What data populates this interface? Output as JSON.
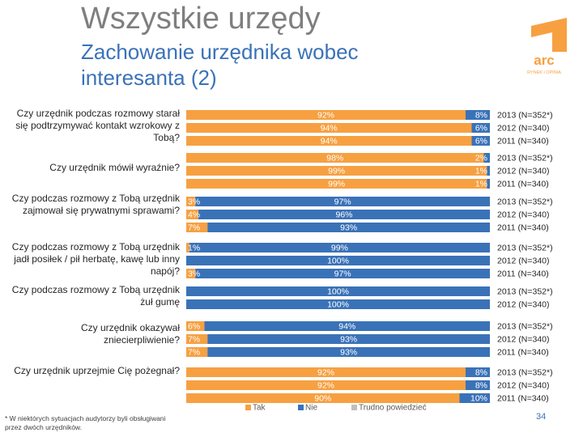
{
  "header": {
    "title": "Wszystkie urzędy",
    "subtitle": "Zachowanie urzędnika wobec interesanta (2)"
  },
  "logo": {
    "text": "arc",
    "tagline": "RYNEK i OPINIA"
  },
  "footnote": "* W niektórych sytuacjach audytorzy byli obsługiwani przez dwóch urzędników.",
  "page_number": "34",
  "colors": {
    "tak": "#f7a041",
    "nie": "#3a72b8",
    "trudno": "#bfbfbf",
    "title": "#7f7f7f",
    "subtitle": "#3a72b8"
  },
  "chart_data": {
    "type": "bar",
    "orientation": "horizontal",
    "stacked": true,
    "xlim": [
      0,
      100
    ],
    "unit": "%",
    "legend": [
      "Tak",
      "Nie",
      "Trudno powiedzieć"
    ],
    "legend_position": "bottom",
    "questions": [
      {
        "label": "Czy urzędnik podczas rozmowy starał się podtrzymywać kontakt wzrokowy z Tobą?",
        "rows": [
          {
            "year": "2013 (N=352*)",
            "tak": 92,
            "nie": 8,
            "trudno": 0,
            "labels": [
              "92%",
              "8%"
            ]
          },
          {
            "year": "2012 (N=340)",
            "tak": 94,
            "nie": 6,
            "trudno": 0,
            "labels": [
              "94%",
              "6%"
            ]
          },
          {
            "year": "2011 (N=340)",
            "tak": 94,
            "nie": 6,
            "trudno": 0,
            "labels": [
              "94%",
              "6%"
            ]
          }
        ]
      },
      {
        "label": "Czy urzędnik mówił wyraźnie?",
        "rows": [
          {
            "year": "2013 (N=352*)",
            "tak": 98,
            "nie": 2,
            "trudno": 0,
            "labels": [
              "98%",
              "2%"
            ]
          },
          {
            "year": "2012 (N=340)",
            "tak": 99,
            "nie": 1,
            "trudno": 0,
            "labels": [
              "99%",
              "1%"
            ]
          },
          {
            "year": "2011 (N=340)",
            "tak": 99,
            "nie": 1,
            "trudno": 0,
            "labels": [
              "99%",
              "1%"
            ]
          }
        ]
      },
      {
        "label": "Czy podczas rozmowy z Tobą urzędnik zajmował się prywatnymi sprawami?",
        "rows": [
          {
            "year": "2013 (N=352*)",
            "tak": 3,
            "nie": 97,
            "trudno": 0,
            "labels": [
              "3%",
              "97%"
            ]
          },
          {
            "year": "2012 (N=340)",
            "tak": 4,
            "nie": 96,
            "trudno": 0,
            "labels": [
              "4%",
              "96%"
            ]
          },
          {
            "year": "2011 (N=340)",
            "tak": 7,
            "nie": 93,
            "trudno": 0,
            "labels": [
              "7%",
              "93%"
            ]
          }
        ]
      },
      {
        "label": "Czy podczas rozmowy z Tobą urzędnik jadł posiłek / pił herbatę, kawę lub inny napój?",
        "rows": [
          {
            "year": "2013 (N=352*)",
            "tak": 1,
            "nie": 99,
            "trudno": 0,
            "labels": [
              "1%",
              "99%"
            ]
          },
          {
            "year": "2012 (N=340)",
            "tak": 0,
            "nie": 100,
            "trudno": 0,
            "labels": [
              "",
              "100%"
            ]
          },
          {
            "year": "2011 (N=340)",
            "tak": 3,
            "nie": 97,
            "trudno": 0,
            "labels": [
              "3%",
              "97%"
            ]
          }
        ]
      },
      {
        "label": "Czy podczas rozmowy z Tobą urzędnik żuł gumę",
        "rows": [
          {
            "year": "2013 (N=352*)",
            "tak": 0,
            "nie": 100,
            "trudno": 0,
            "labels": [
              "",
              "100%"
            ]
          },
          {
            "year": "2012 (N=340)",
            "tak": 0,
            "nie": 100,
            "trudno": 0,
            "labels": [
              "",
              "100%"
            ]
          }
        ]
      },
      {
        "label": "Czy urzędnik okazywał zniecierpliwienie?",
        "rows": [
          {
            "year": "2013 (N=352*)",
            "tak": 6,
            "nie": 94,
            "trudno": 0,
            "labels": [
              "6%",
              "94%"
            ]
          },
          {
            "year": "2012 (N=340)",
            "tak": 7,
            "nie": 93,
            "trudno": 0,
            "labels": [
              "7%",
              "93%"
            ]
          },
          {
            "year": "2011 (N=340)",
            "tak": 7,
            "nie": 93,
            "trudno": 0,
            "labels": [
              "7%",
              "93%"
            ]
          }
        ]
      },
      {
        "label": "Czy urzędnik uprzejmie Cię pożegnał?",
        "rows": [
          {
            "year": "2013 (N=352*)",
            "tak": 92,
            "nie": 8,
            "trudno": 0,
            "labels": [
              "92%",
              "8%"
            ]
          },
          {
            "year": "2012 (N=340)",
            "tak": 92,
            "nie": 8,
            "trudno": 0,
            "labels": [
              "92%",
              "8%"
            ]
          },
          {
            "year": "2011 (N=340)",
            "tak": 90,
            "nie": 10,
            "trudno": 0,
            "labels": [
              "90%",
              "10%"
            ]
          }
        ]
      }
    ]
  }
}
